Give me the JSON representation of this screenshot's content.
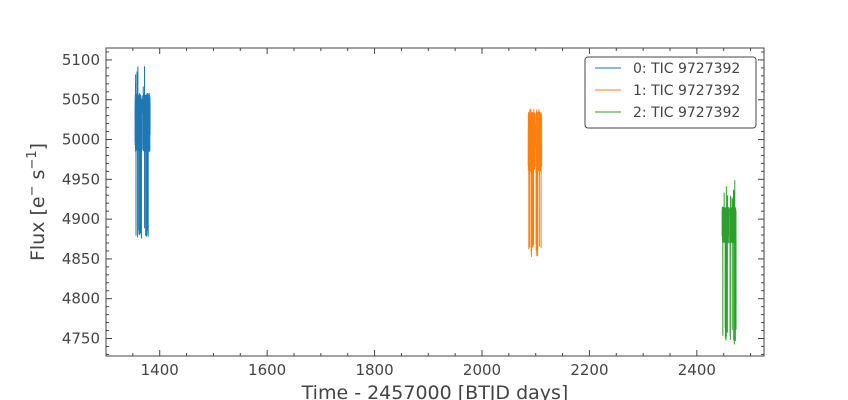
{
  "chart_data": {
    "type": "line",
    "title": "",
    "xlabel": "Time - 2457000 [BTJD days]",
    "ylabel_parts": {
      "prefix": "Flux [e",
      "sup1": "−",
      "middle": " s",
      "sup2": "−1",
      "suffix": "]"
    },
    "xlim": [
      1300,
      2525
    ],
    "ylim": [
      4728,
      5115
    ],
    "x_ticks": [
      1400,
      1600,
      1800,
      2000,
      2200,
      2400
    ],
    "x_tick_labels": [
      "1400",
      "1600",
      "1800",
      "2000",
      "2200",
      "2400"
    ],
    "y_ticks": [
      4750,
      4800,
      4850,
      4900,
      4950,
      5000,
      5050,
      5100
    ],
    "y_tick_labels": [
      "4750",
      "4800",
      "4850",
      "4900",
      "4950",
      "5000",
      "5050",
      "5100"
    ],
    "grid": false,
    "legend_position": "top-right",
    "series": [
      {
        "name": "0: TIC 9727392",
        "color": "#1f77b4",
        "x_range": [
          1354,
          1382
        ],
        "gap": [
          1367,
          1369
        ],
        "y_core": [
          4985,
          5058
        ],
        "y_dips_to": [
          4876,
          4890
        ],
        "y_spikes_to": [
          5062,
          5097
        ]
      },
      {
        "name": "1: TIC 9727392",
        "color": "#ff7f0e",
        "x_range": [
          2086,
          2111
        ],
        "gap": [
          2098,
          2100
        ],
        "y_core": [
          4960,
          5035
        ],
        "y_dips_to": [
          4852,
          4870
        ],
        "y_spikes_to": [
          5036,
          5038
        ]
      },
      {
        "name": "2: TIC 9727392",
        "color": "#2ca02c",
        "x_range": [
          2447,
          2473
        ],
        "gap": [
          2459,
          2461
        ],
        "y_core": [
          4870,
          4915
        ],
        "y_dips_to": [
          4742,
          4765
        ],
        "y_spikes_to": [
          4925,
          4950
        ]
      }
    ]
  }
}
